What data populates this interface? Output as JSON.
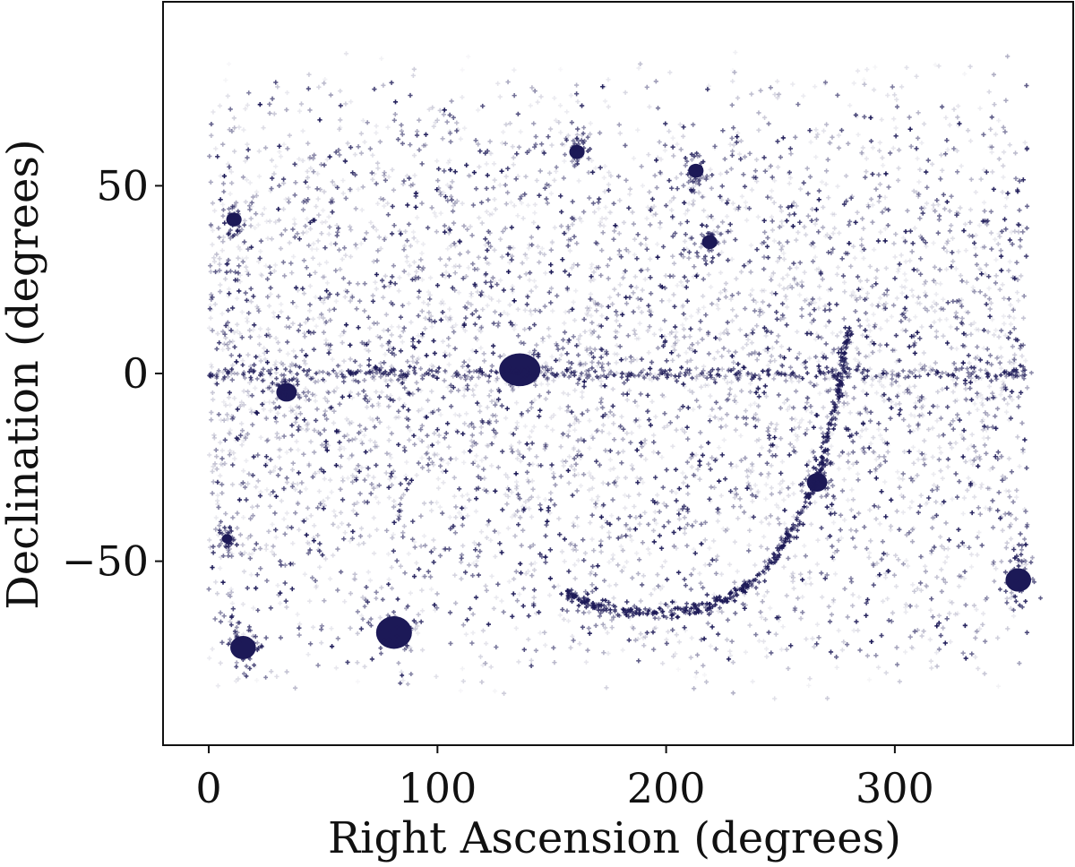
{
  "chart_data": {
    "type": "scatter",
    "title": "",
    "xlabel": "Right Ascension (degrees)",
    "ylabel": "Declination (degrees)",
    "xlim": [
      -20,
      378
    ],
    "ylim": [
      -99,
      99
    ],
    "x_ticks": [
      0,
      100,
      200,
      300
    ],
    "y_ticks": [
      50,
      0,
      -50
    ],
    "x_tick_labels": [
      "0",
      "100",
      "200",
      "300"
    ],
    "y_tick_labels": [
      "50",
      "0",
      "−50"
    ],
    "grid": false,
    "legend": "none",
    "marker": "plus",
    "point_color": "#1c1957",
    "description_of_density": "dense all-sky point cloud; points span RA 0-360, Dec about -88 to 88",
    "features": [
      {
        "kind": "dense-clump",
        "ra": 136,
        "dec": 1,
        "ra_width": 18,
        "dec_width": 7
      },
      {
        "kind": "clump",
        "ra": 34,
        "dec": -5,
        "size": 4
      },
      {
        "kind": "clump",
        "ra": 81,
        "dec": -69,
        "size": 7
      },
      {
        "kind": "clump",
        "ra": 15,
        "dec": -73,
        "size": 5
      },
      {
        "kind": "clump",
        "ra": 354,
        "dec": -55,
        "size": 5
      },
      {
        "kind": "clump",
        "ra": 266,
        "dec": -29,
        "size": 4
      },
      {
        "kind": "clump",
        "ra": 213,
        "dec": 54,
        "size": 3
      },
      {
        "kind": "clump",
        "ra": 219,
        "dec": 35,
        "size": 3
      },
      {
        "kind": "clump",
        "ra": 161,
        "dec": 59,
        "size": 3
      },
      {
        "kind": "clump",
        "ra": 11,
        "dec": 41,
        "size": 3
      },
      {
        "kind": "clump",
        "ra": 8,
        "dec": -44,
        "size": 2
      },
      {
        "kind": "stripe",
        "dec": 0,
        "ra_range": [
          0,
          360
        ]
      },
      {
        "kind": "arc",
        "points": [
          [
            280,
            12
          ],
          [
            275,
            -5
          ],
          [
            268,
            -25
          ],
          [
            255,
            -42
          ],
          [
            240,
            -55
          ],
          [
            220,
            -62
          ],
          [
            195,
            -64
          ],
          [
            170,
            -62
          ],
          [
            155,
            -58
          ]
        ]
      }
    ]
  }
}
